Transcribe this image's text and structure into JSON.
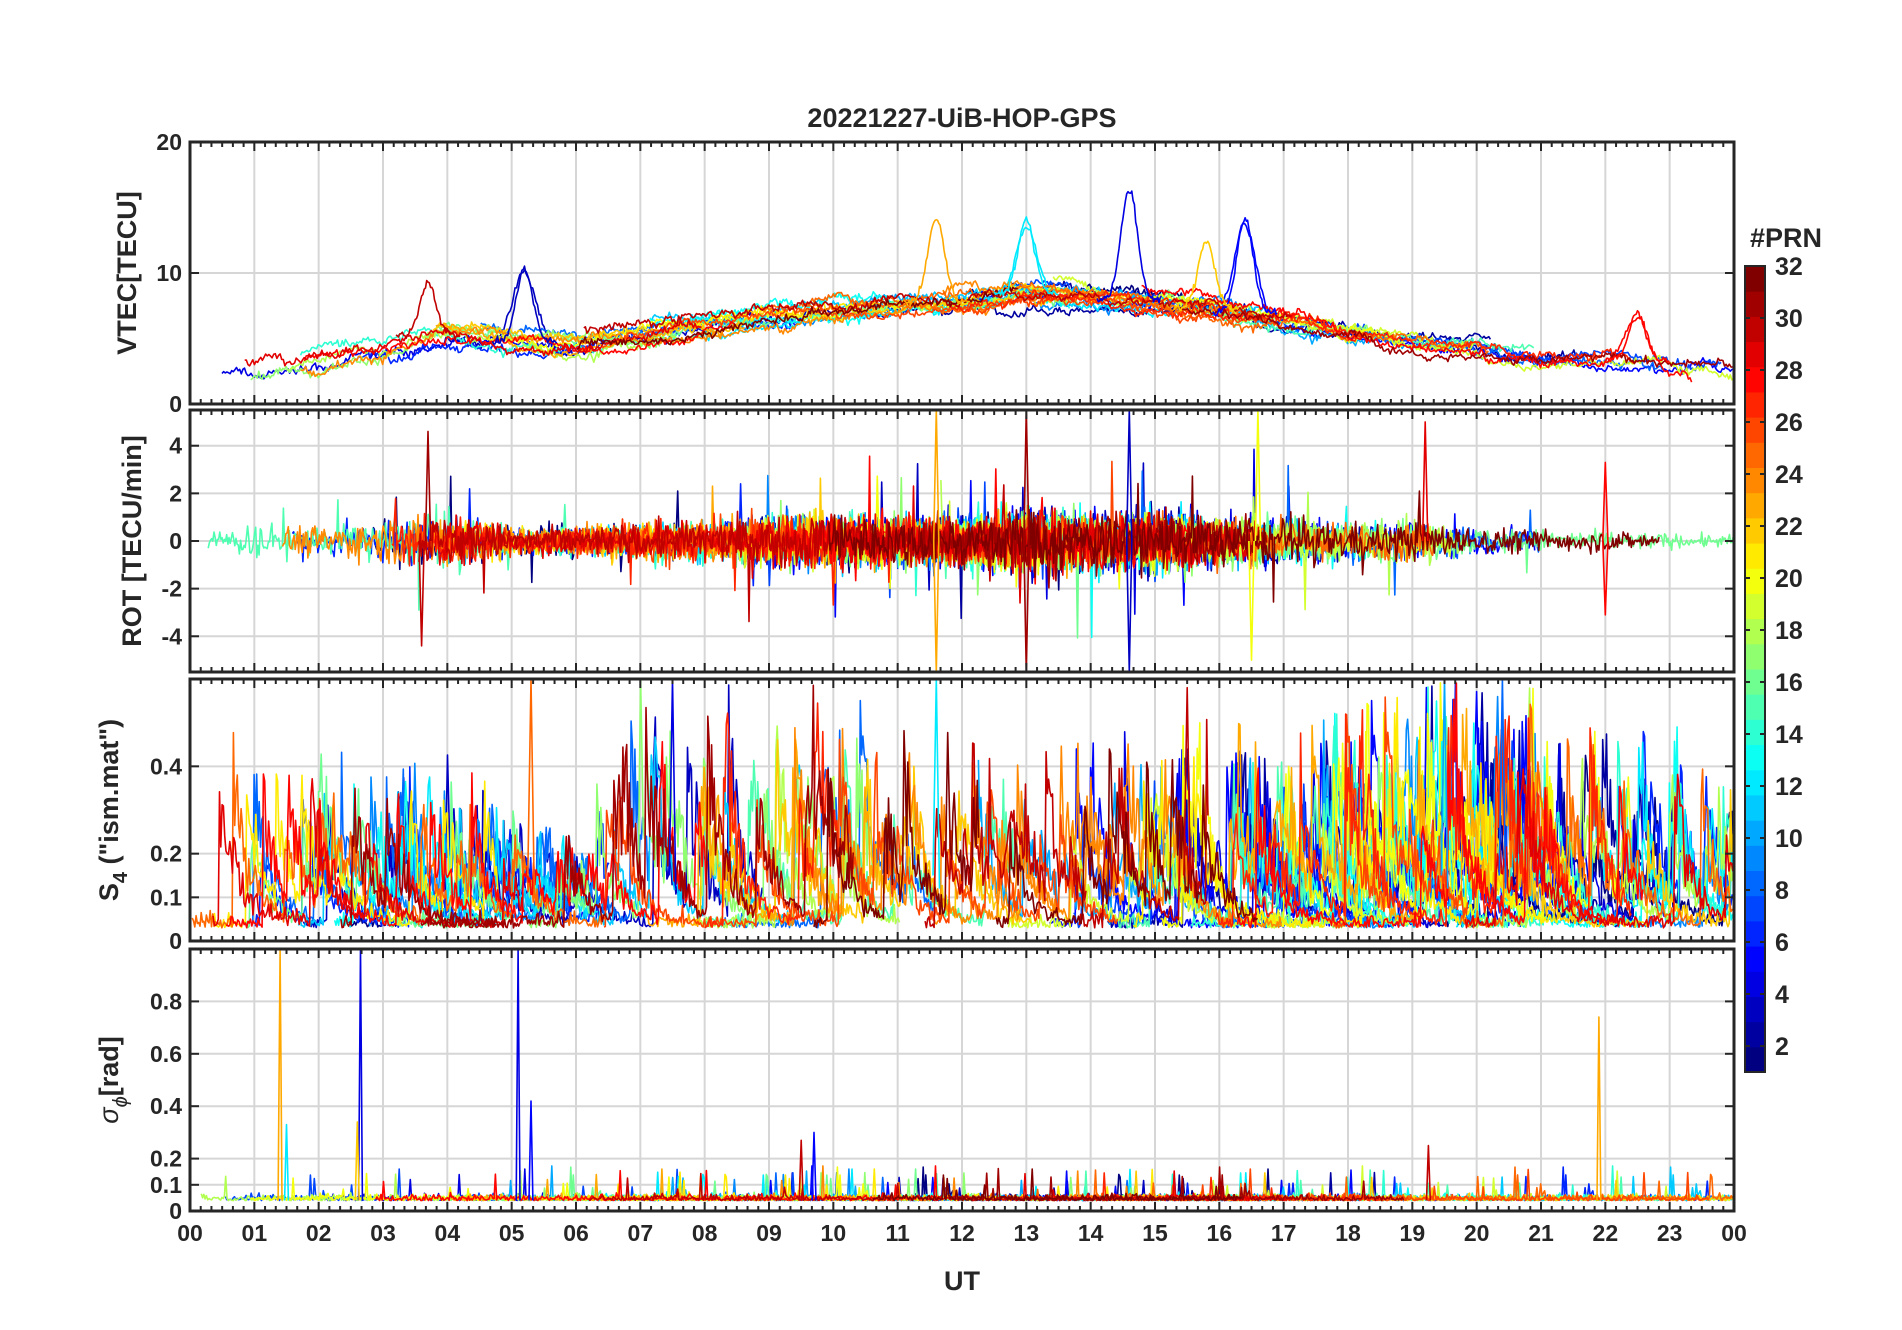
{
  "figure": {
    "title": "20221227-UiB-HOP-GPS",
    "xlabel": "UT",
    "colorbar_label": "#PRN"
  },
  "chart_data": [
    {
      "type": "line",
      "panel": "vtec",
      "ylabel": "VTEC[TECU]",
      "ylim": [
        0,
        20
      ],
      "yticks": [
        0,
        10,
        20
      ],
      "ytick_labels": [
        "0",
        "10",
        "20"
      ],
      "xlim": [
        0,
        24
      ],
      "grid": true,
      "series_note": "one line per GPS PRN (1-32), colored by PRN",
      "baseline": [
        3.2,
        3.0,
        3.5,
        4.5,
        5.5,
        4.8,
        4.5,
        5.2,
        5.8,
        6.5,
        7.2,
        7.5,
        8.0,
        8.5,
        8.2,
        7.8,
        7.2,
        6.5,
        5.5,
        5.0,
        4.5,
        3.8,
        3.5,
        3.2,
        2.8
      ],
      "peaks": [
        {
          "x": 3.7,
          "y": 9.3,
          "prn": 30
        },
        {
          "x": 5.2,
          "y": 10.3,
          "prn": 3
        },
        {
          "x": 11.6,
          "y": 14.2,
          "prn": 23
        },
        {
          "x": 13.0,
          "y": 14.0,
          "prn": 12
        },
        {
          "x": 14.6,
          "y": 16.4,
          "prn": 4
        },
        {
          "x": 16.4,
          "y": 14.2,
          "prn": 5
        },
        {
          "x": 15.8,
          "y": 12.5,
          "prn": 22
        },
        {
          "x": 22.5,
          "y": 7.0,
          "prn": 28
        }
      ]
    },
    {
      "type": "line",
      "panel": "rot",
      "ylabel": "ROT [TECU/min]",
      "ylim": [
        -5.5,
        5.5
      ],
      "yticks": [
        -4,
        -2,
        0,
        2,
        4
      ],
      "ytick_labels": [
        "-4",
        "-2",
        "0",
        "2",
        "4"
      ],
      "xlim": [
        0,
        24
      ],
      "grid": true,
      "activity": [
        0.6,
        1.2,
        1.0,
        1.4,
        1.8,
        1.0,
        0.9,
        1.2,
        1.3,
        1.6,
        1.8,
        1.6,
        1.5,
        2.2,
        1.8,
        2.0,
        1.6,
        1.4,
        1.2,
        1.3,
        0.9,
        0.8,
        0.7,
        0.5,
        0.4
      ],
      "spikes": [
        {
          "x": 3.7,
          "y": 4.6,
          "prn": 31
        },
        {
          "x": 3.6,
          "y": -4.4,
          "prn": 30
        },
        {
          "x": 11.6,
          "y": 5.5,
          "prn": 23
        },
        {
          "x": 11.6,
          "y": -5.5,
          "prn": 23
        },
        {
          "x": 13.0,
          "y": 5.5,
          "prn": 31
        },
        {
          "x": 13.0,
          "y": -5.5,
          "prn": 31
        },
        {
          "x": 14.6,
          "y": 5.5,
          "prn": 3
        },
        {
          "x": 14.6,
          "y": -5.5,
          "prn": 3
        },
        {
          "x": 16.6,
          "y": 5.5,
          "prn": 20
        },
        {
          "x": 16.5,
          "y": -5.0,
          "prn": 20
        },
        {
          "x": 19.2,
          "y": 5.0,
          "prn": 29
        },
        {
          "x": 22.0,
          "y": 3.3,
          "prn": 28
        },
        {
          "x": 22.0,
          "y": -3.1,
          "prn": 28
        }
      ]
    },
    {
      "type": "line",
      "panel": "s4",
      "ylabel_main": "S",
      "ylabel_sub": "4",
      "ylabel_rest": " (\"ism.mat\")",
      "ylim": [
        0,
        0.6
      ],
      "yticks": [
        0,
        0.1,
        0.2,
        0.4
      ],
      "ytick_labels": [
        "0",
        "0.1",
        "0.2",
        "0.4"
      ],
      "xlim": [
        0,
        24
      ],
      "grid": true,
      "activity": [
        0.25,
        0.22,
        0.22,
        0.18,
        0.2,
        0.15,
        0.12,
        0.3,
        0.28,
        0.3,
        0.28,
        0.25,
        0.22,
        0.2,
        0.22,
        0.24,
        0.25,
        0.22,
        0.26,
        0.28,
        0.3,
        0.28,
        0.26,
        0.24,
        0.2
      ],
      "spikes": [
        {
          "x": 7.5,
          "y": 0.6,
          "prn": 4
        },
        {
          "x": 5.3,
          "y": 0.6,
          "prn": 25
        },
        {
          "x": 11.6,
          "y": 0.6,
          "prn": 12
        },
        {
          "x": 15.5,
          "y": 0.58,
          "prn": 30
        },
        {
          "x": 19.5,
          "y": 0.6,
          "prn": 10
        },
        {
          "x": 20.4,
          "y": 0.6,
          "prn": 8
        }
      ]
    },
    {
      "type": "line",
      "panel": "sigma_phi",
      "ylabel_main": "σ",
      "ylabel_sub": "ϕ",
      "ylabel_rest": "[rad]",
      "ylim": [
        0,
        1.0
      ],
      "yticks": [
        0,
        0.1,
        0.2,
        0.4,
        0.6,
        0.8
      ],
      "ytick_labels": [
        "0",
        "0.1",
        "0.2",
        "0.4",
        "0.6",
        "0.8"
      ],
      "xlim": [
        0,
        24
      ],
      "xticks": [
        0,
        1,
        2,
        3,
        4,
        5,
        6,
        7,
        8,
        9,
        10,
        11,
        12,
        13,
        14,
        15,
        16,
        17,
        18,
        19,
        20,
        21,
        22,
        23,
        24
      ],
      "xtick_labels": [
        "00",
        "01",
        "02",
        "03",
        "04",
        "05",
        "06",
        "07",
        "08",
        "09",
        "10",
        "11",
        "12",
        "13",
        "14",
        "15",
        "16",
        "17",
        "18",
        "19",
        "20",
        "21",
        "22",
        "23",
        "00"
      ],
      "grid": true,
      "spikes": [
        {
          "x": 1.4,
          "y": 1.0,
          "prn": 23
        },
        {
          "x": 2.65,
          "y": 1.0,
          "prn": 4
        },
        {
          "x": 2.6,
          "y": 0.34,
          "prn": 22
        },
        {
          "x": 5.1,
          "y": 1.0,
          "prn": 4
        },
        {
          "x": 5.3,
          "y": 0.42,
          "prn": 5
        },
        {
          "x": 1.5,
          "y": 0.33,
          "prn": 12
        },
        {
          "x": 9.7,
          "y": 0.3,
          "prn": 5
        },
        {
          "x": 9.5,
          "y": 0.27,
          "prn": 30
        },
        {
          "x": 21.9,
          "y": 0.74,
          "prn": 23
        },
        {
          "x": 19.25,
          "y": 0.25,
          "prn": 30
        }
      ]
    }
  ],
  "colorbar": {
    "colormap": "jet",
    "range": [
      1,
      32
    ],
    "ticks": [
      2,
      4,
      6,
      8,
      10,
      12,
      14,
      16,
      18,
      20,
      22,
      24,
      26,
      28,
      30,
      32
    ],
    "tick_labels": [
      "2",
      "4",
      "6",
      "8",
      "10",
      "12",
      "14",
      "16",
      "18",
      "20",
      "22",
      "24",
      "26",
      "28",
      "30",
      "32"
    ],
    "levels": 32
  }
}
